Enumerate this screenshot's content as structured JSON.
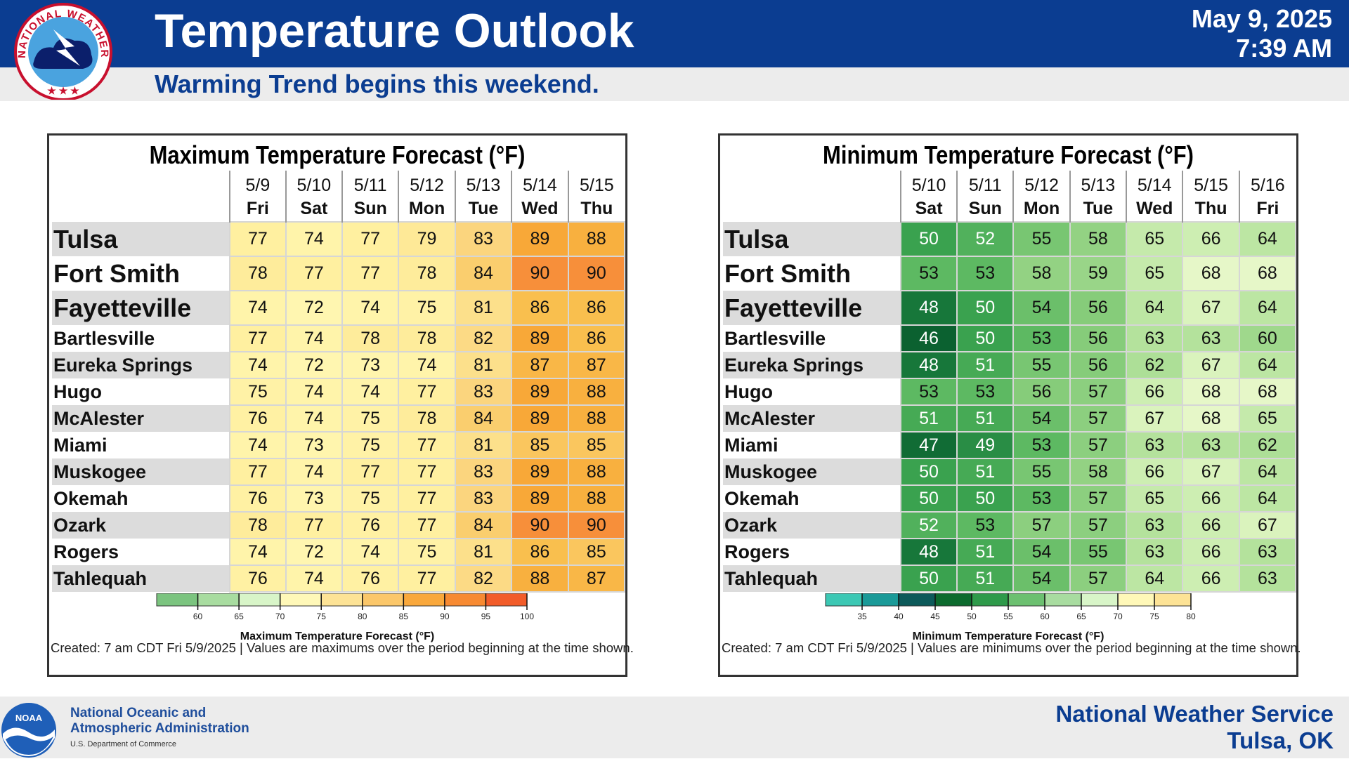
{
  "header": {
    "title": "Temperature Outlook",
    "subtitle": "Warming Trend begins this weekend.",
    "date": "May 9, 2025",
    "time": "7:39 AM",
    "logo_text": "NATIONAL WEATHER SERVICE"
  },
  "max_panel": {
    "title": "Maximum Temperature Forecast (°F)",
    "dates": [
      "5/9",
      "5/10",
      "5/11",
      "5/12",
      "5/13",
      "5/14",
      "5/15"
    ],
    "days": [
      "Fri",
      "Sat",
      "Sun",
      "Mon",
      "Tue",
      "Wed",
      "Thu"
    ],
    "rows": [
      {
        "city": "Tulsa",
        "values": [
          77,
          74,
          77,
          79,
          83,
          89,
          88
        ]
      },
      {
        "city": "Fort Smith",
        "values": [
          78,
          77,
          77,
          78,
          84,
          90,
          90
        ]
      },
      {
        "city": "Fayetteville",
        "values": [
          74,
          72,
          74,
          75,
          81,
          86,
          86
        ]
      },
      {
        "city": "Bartlesville",
        "values": [
          77,
          74,
          78,
          78,
          82,
          89,
          86
        ]
      },
      {
        "city": "Eureka Springs",
        "values": [
          74,
          72,
          73,
          74,
          81,
          87,
          87
        ]
      },
      {
        "city": "Hugo",
        "values": [
          75,
          74,
          74,
          77,
          83,
          89,
          88
        ]
      },
      {
        "city": "McAlester",
        "values": [
          76,
          74,
          75,
          78,
          84,
          89,
          88
        ]
      },
      {
        "city": "Miami",
        "values": [
          74,
          73,
          75,
          77,
          81,
          85,
          85
        ]
      },
      {
        "city": "Muskogee",
        "values": [
          77,
          74,
          77,
          77,
          83,
          89,
          88
        ]
      },
      {
        "city": "Okemah",
        "values": [
          76,
          73,
          75,
          77,
          83,
          89,
          88
        ]
      },
      {
        "city": "Ozark",
        "values": [
          78,
          77,
          76,
          77,
          84,
          90,
          90
        ]
      },
      {
        "city": "Rogers",
        "values": [
          74,
          72,
          74,
          75,
          81,
          86,
          85
        ]
      },
      {
        "city": "Tahlequah",
        "values": [
          76,
          74,
          76,
          77,
          82,
          88,
          87
        ]
      }
    ],
    "legend": {
      "title": "Maximum Temperature Forecast (°F)",
      "ticks": [
        "60",
        "65",
        "70",
        "75",
        "80",
        "85",
        "90",
        "95",
        "100"
      ],
      "colors": [
        "#7bc47f",
        "#a8dca0",
        "#d8f5c8",
        "#fff8b8",
        "#fde396",
        "#fbc76a",
        "#f9a83c",
        "#f78a32",
        "#f25c2a"
      ]
    },
    "created": "Created: 7 am CDT Fri 5/9/2025  |  Values are maximums over the period beginning at the time shown."
  },
  "min_panel": {
    "title": "Minimum Temperature Forecast (°F)",
    "dates": [
      "5/10",
      "5/11",
      "5/12",
      "5/13",
      "5/14",
      "5/15",
      "5/16"
    ],
    "days": [
      "Sat",
      "Sun",
      "Mon",
      "Tue",
      "Wed",
      "Thu",
      "Fri"
    ],
    "rows": [
      {
        "city": "Tulsa",
        "values": [
          50,
          52,
          55,
          58,
          65,
          66,
          64
        ]
      },
      {
        "city": "Fort Smith",
        "values": [
          53,
          53,
          58,
          59,
          65,
          68,
          68
        ]
      },
      {
        "city": "Fayetteville",
        "values": [
          48,
          50,
          54,
          56,
          64,
          67,
          64
        ]
      },
      {
        "city": "Bartlesville",
        "values": [
          46,
          50,
          53,
          56,
          63,
          63,
          60
        ]
      },
      {
        "city": "Eureka Springs",
        "values": [
          48,
          51,
          55,
          56,
          62,
          67,
          64
        ]
      },
      {
        "city": "Hugo",
        "values": [
          53,
          53,
          56,
          57,
          66,
          68,
          68
        ]
      },
      {
        "city": "McAlester",
        "values": [
          51,
          51,
          54,
          57,
          67,
          68,
          65
        ]
      },
      {
        "city": "Miami",
        "values": [
          47,
          49,
          53,
          57,
          63,
          63,
          62
        ]
      },
      {
        "city": "Muskogee",
        "values": [
          50,
          51,
          55,
          58,
          66,
          67,
          64
        ]
      },
      {
        "city": "Okemah",
        "values": [
          50,
          50,
          53,
          57,
          65,
          66,
          64
        ]
      },
      {
        "city": "Ozark",
        "values": [
          52,
          53,
          57,
          57,
          63,
          66,
          67
        ]
      },
      {
        "city": "Rogers",
        "values": [
          48,
          51,
          54,
          55,
          63,
          66,
          63
        ]
      },
      {
        "city": "Tahlequah",
        "values": [
          50,
          51,
          54,
          57,
          64,
          66,
          63
        ]
      }
    ],
    "legend": {
      "title": "Minimum Temperature Forecast (°F)",
      "ticks": [
        "35",
        "40",
        "45",
        "50",
        "55",
        "60",
        "65",
        "70",
        "75",
        "80"
      ],
      "colors": [
        "#3cc8b4",
        "#1a9a98",
        "#0d5a5a",
        "#0d6b2e",
        "#2e9a4a",
        "#6cc070",
        "#a8dca0",
        "#d8f5c8",
        "#fff8b8",
        "#fde396"
      ]
    },
    "created": "Created: 7 am CDT Fri 5/9/2025  |  Values are minimums over the period beginning at the time shown."
  },
  "footer": {
    "noaa_logo_text": "NOAA",
    "noaa_line1": "National Oceanic and",
    "noaa_line2": "Atmospheric Administration",
    "noaa_line3": "U.S. Department of Commerce",
    "office_line1": "National Weather Service",
    "office_line2": "Tulsa, OK"
  }
}
